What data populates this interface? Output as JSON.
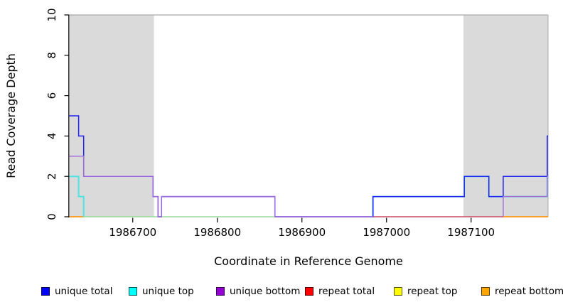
{
  "axes": {
    "xlabel": "Coordinate in Reference Genome",
    "ylabel": "Read Coverage Depth",
    "xtick_labels": [
      "1986700",
      "1986800",
      "1986900",
      "1987000",
      "1987100"
    ],
    "ytick_labels": [
      "0",
      "2",
      "4",
      "6",
      "8",
      "10"
    ]
  },
  "legend": {
    "items": [
      {
        "label": "unique total",
        "color": "#0000ff"
      },
      {
        "label": "unique top",
        "color": "#00ffff"
      },
      {
        "label": "unique bottom",
        "color": "#9400d3"
      },
      {
        "label": "repeat total",
        "color": "#ff0000"
      },
      {
        "label": "repeat top",
        "color": "#ffff00"
      },
      {
        "label": "repeat bottom",
        "color": "#ffa500"
      }
    ]
  },
  "chart_data": {
    "type": "line",
    "title": "",
    "xlabel": "Coordinate in Reference Genome",
    "ylabel": "Read Coverage Depth",
    "xlim": [
      1986625,
      1987191
    ],
    "ylim": [
      0,
      10
    ],
    "grid": false,
    "legend_position": "bottom",
    "xticks": [
      1986700,
      1986800,
      1986900,
      1987000,
      1987100
    ],
    "yticks": [
      0,
      2,
      4,
      6,
      8,
      10
    ],
    "top_rule_depth": 10,
    "highlight_regions": [
      {
        "x0": 1986625,
        "x1": 1986725
      },
      {
        "x0": 1987091,
        "x1": 1987191
      }
    ],
    "series": [
      {
        "name": "unique total",
        "color": "#0000ff",
        "steps": [
          [
            1986625,
            5
          ],
          [
            1986636,
            4
          ],
          [
            1986642,
            2
          ],
          [
            1986724,
            1
          ],
          [
            1986730,
            0
          ],
          [
            1986734,
            1
          ],
          [
            1986868,
            0
          ],
          [
            1986984,
            1
          ],
          [
            1987092,
            2
          ],
          [
            1987121,
            1
          ],
          [
            1987138,
            2
          ],
          [
            1987190,
            4
          ]
        ],
        "x_end": 1987191
      },
      {
        "name": "unique top",
        "color": "#00ffff",
        "steps": [
          [
            1986625,
            2
          ],
          [
            1986636,
            1
          ],
          [
            1986642,
            0
          ],
          [
            1986984,
            1
          ],
          [
            1987092,
            2
          ],
          [
            1987121,
            1
          ],
          [
            1987190,
            2
          ]
        ],
        "x_end": 1987191
      },
      {
        "name": "unique bottom",
        "color": "#9400d3",
        "steps": [
          [
            1986625,
            3
          ],
          [
            1986642,
            2
          ],
          [
            1986724,
            1
          ],
          [
            1986730,
            0
          ],
          [
            1986734,
            1
          ],
          [
            1986868,
            0
          ],
          [
            1987138,
            1
          ],
          [
            1987190,
            2
          ]
        ],
        "x_end": 1987191
      },
      {
        "name": "repeat total",
        "color": "#ff0000",
        "steps": [
          [
            1986625,
            0
          ]
        ],
        "x_end": 1987191
      },
      {
        "name": "repeat top",
        "color": "#ffff00",
        "steps": [
          [
            1986625,
            0
          ]
        ],
        "x_end": 1987191
      },
      {
        "name": "repeat bottom",
        "color": "#ffa500",
        "steps": [
          [
            1986625,
            0
          ]
        ],
        "x_end": 1987191
      }
    ],
    "render_layers": [
      {
        "name": "baseline-blend-green",
        "color": "#98da98",
        "width": 1.5,
        "pts": [
          [
            1986642,
            0
          ],
          [
            1986984,
            0
          ]
        ]
      },
      {
        "name": "baseline-repeat-total",
        "color": "#cc4a66",
        "width": 1.5,
        "pts": [
          [
            1986984,
            0
          ],
          [
            1987138,
            0
          ]
        ]
      },
      {
        "name": "baseline-repeat-bottom-left",
        "color": "#ff9712",
        "width": 1.8,
        "pts": [
          [
            1986625,
            0
          ],
          [
            1986642,
            0
          ]
        ]
      },
      {
        "name": "baseline-repeat-bottom-right",
        "color": "#ff9712",
        "width": 1.8,
        "pts": [
          [
            1987138,
            0
          ],
          [
            1987191,
            0
          ]
        ]
      },
      {
        "name": "unique-top-left",
        "color": "#4fe3e3",
        "width": 2.0,
        "pts": [
          [
            1986625,
            2
          ],
          [
            1986636,
            2
          ],
          [
            1986636,
            1
          ],
          [
            1986642,
            1
          ],
          [
            1986642,
            0
          ]
        ]
      },
      {
        "name": "unique-top-right",
        "color": "#4fe3e3",
        "width": 2.0,
        "pts": [
          [
            1986984,
            0
          ],
          [
            1986984,
            1
          ],
          [
            1987092,
            1
          ],
          [
            1987092,
            2
          ],
          [
            1987121,
            2
          ],
          [
            1987121,
            1
          ],
          [
            1987190,
            1
          ],
          [
            1987190,
            2
          ],
          [
            1987191,
            2
          ]
        ]
      },
      {
        "name": "unique-total-line",
        "color": "#2222f2",
        "width": 1.5,
        "pts": [
          [
            1986625,
            5
          ],
          [
            1986636,
            5
          ],
          [
            1986636,
            4
          ],
          [
            1986642,
            4
          ],
          [
            1986642,
            2
          ],
          [
            1986724,
            2
          ],
          [
            1986724,
            1
          ],
          [
            1986730,
            1
          ],
          [
            1986730,
            0
          ],
          [
            1986734,
            0
          ],
          [
            1986734,
            1
          ],
          [
            1986868,
            1
          ],
          [
            1986868,
            0
          ],
          [
            1986984,
            0
          ],
          [
            1986984,
            1
          ],
          [
            1987092,
            1
          ],
          [
            1987092,
            2
          ],
          [
            1987121,
            2
          ],
          [
            1987121,
            1
          ],
          [
            1987138,
            1
          ],
          [
            1987138,
            2
          ],
          [
            1987190,
            2
          ],
          [
            1987190,
            4
          ],
          [
            1987191,
            4
          ]
        ]
      },
      {
        "name": "unique-bottom-left",
        "color": "#a26cda",
        "width": 1.4,
        "pts": [
          [
            1986625,
            3
          ],
          [
            1986642,
            3
          ],
          [
            1986642,
            2
          ],
          [
            1986724,
            2
          ],
          [
            1986724,
            1
          ],
          [
            1986730,
            1
          ],
          [
            1986730,
            0
          ],
          [
            1986734,
            0
          ],
          [
            1986734,
            1
          ],
          [
            1986868,
            1
          ],
          [
            1986868,
            0
          ],
          [
            1986984,
            0
          ]
        ]
      },
      {
        "name": "unique-bottom-right",
        "color": "#a26cda",
        "width": 1.4,
        "pts": [
          [
            1987138,
            0
          ],
          [
            1987138,
            1
          ],
          [
            1987190,
            1
          ],
          [
            1987190,
            2
          ],
          [
            1987191,
            2
          ]
        ]
      }
    ],
    "colors": {
      "band": "#dadada",
      "rule": "#a9a9a9",
      "axis": "#000000"
    }
  }
}
